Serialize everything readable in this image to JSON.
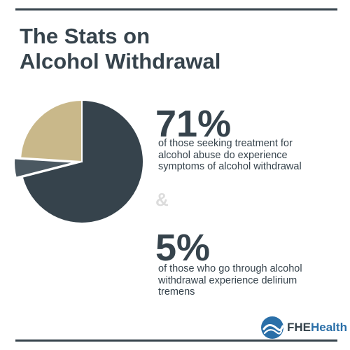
{
  "header": {
    "title_line1": "The Stats on",
    "title_line2": "Alcohol Withdrawal"
  },
  "colors": {
    "dark": "#36434c",
    "slate": "#4b5861",
    "gold": "#c9b88a",
    "ampersand": "#dcdcdc",
    "brand_blue": "#2a6fa8"
  },
  "chart_data": {
    "type": "pie",
    "slices": [
      {
        "value": 71,
        "color": "#36434c"
      },
      {
        "value": 5,
        "color": "#4b5861"
      },
      {
        "value": 24,
        "color": "#c9b88a"
      }
    ]
  },
  "stats": [
    {
      "value": "71%",
      "desc_lines": [
        "of those seeking treatment for",
        "alcohol abuse do experience",
        "symptoms of alcohol withdrawal"
      ]
    },
    {
      "value": "5%",
      "desc_lines": [
        "of those who go through alcohol",
        "withdrawal experience delirium",
        "tremens"
      ]
    }
  ],
  "connector": "&",
  "logo": {
    "part1": "FHE",
    "part2": "Health",
    "icon": "wave-globe-icon"
  }
}
